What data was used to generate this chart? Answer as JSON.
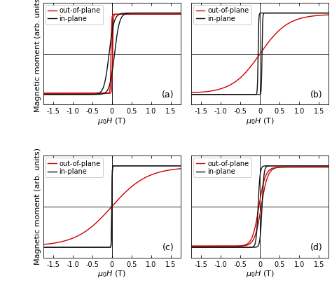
{
  "panels": [
    "(a)",
    "(b)",
    "(c)",
    "(d)"
  ],
  "xlabel": "$\\mu_0 H$ (T)",
  "ylabel": "Magnetic moment (arb. units)",
  "xlim": [
    -1.75,
    1.75
  ],
  "ylim": [
    -1.25,
    1.25
  ],
  "xticks": [
    -1.5,
    -1.0,
    -0.5,
    0.0,
    0.5,
    1.0,
    1.5
  ],
  "xtick_labels": [
    "-1.5",
    "-1.0",
    "-0.5",
    "0",
    "0.5",
    "1.0",
    "1.5"
  ],
  "legend_labels": [
    "out-of-plane",
    "in-plane"
  ],
  "red_color": "#cc0000",
  "black_color": "#111111",
  "line_width": 1.0,
  "bg_color": "#ffffff",
  "panel_label_fs": 9,
  "axis_label_fs": 8,
  "tick_label_fs": 7,
  "legend_fs": 7,
  "figsize": [
    4.74,
    4.04
  ],
  "dpi": 100
}
